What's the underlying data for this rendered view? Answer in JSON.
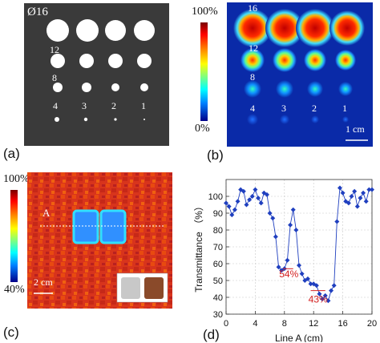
{
  "panels": {
    "a": {
      "label": "(a)",
      "diameter_labels": [
        "Ø16",
        "12",
        "8",
        "4",
        "3",
        "2",
        "1"
      ]
    },
    "b": {
      "label": "(b)",
      "colorbar_top": "100%",
      "colorbar_bottom": "0%",
      "diameter_labels": [
        "16",
        "12",
        "8",
        "4",
        "3",
        "2",
        "1"
      ],
      "scale_bar": "1 cm"
    },
    "c": {
      "label": "(c)",
      "colorbar_top": "100%",
      "colorbar_bottom": "40%",
      "line_label": "A",
      "scale_bar": "2 cm"
    },
    "d": {
      "label": "(d)"
    }
  },
  "chart_data": {
    "type": "scatter",
    "title": "",
    "xlabel": "Line A (cm)",
    "ylabel": "Transmittance （%）",
    "xlim": [
      0,
      20
    ],
    "ylim": [
      30,
      110
    ],
    "xticks": [
      0,
      4,
      8,
      12,
      16,
      20
    ],
    "yticks": [
      30,
      40,
      50,
      60,
      70,
      80,
      90,
      100
    ],
    "grid": true,
    "series_color": "#1f3fbf",
    "x": [
      0.0,
      0.4,
      0.8,
      1.2,
      1.6,
      2.0,
      2.4,
      2.8,
      3.2,
      3.6,
      4.0,
      4.4,
      4.8,
      5.2,
      5.6,
      6.0,
      6.4,
      6.8,
      7.2,
      7.6,
      8.0,
      8.4,
      8.8,
      9.2,
      9.6,
      10.0,
      10.4,
      10.8,
      11.2,
      11.6,
      12.0,
      12.4,
      12.8,
      13.2,
      13.6,
      14.0,
      14.4,
      14.8,
      15.2,
      15.6,
      16.0,
      16.4,
      16.8,
      17.2,
      17.6,
      18.0,
      18.4,
      18.8,
      19.2,
      19.6,
      20.0
    ],
    "y": [
      96,
      94,
      89,
      92,
      97,
      104,
      103,
      95,
      98,
      100,
      104,
      99,
      96,
      102,
      101,
      90,
      87,
      76,
      58,
      56,
      57,
      62,
      83,
      92,
      80,
      59,
      54,
      50,
      51,
      48,
      48,
      47,
      42,
      39,
      41,
      38,
      44,
      47,
      85,
      105,
      102,
      97,
      96,
      100,
      103,
      94,
      99,
      102,
      97,
      104,
      104
    ],
    "annotations": [
      {
        "text": "54%",
        "x": 8.6,
        "y": 52,
        "bracket_x": [
          7.8,
          9.2
        ],
        "bracket_y": 57
      },
      {
        "text": "43%",
        "x": 12.6,
        "y": 37,
        "bracket_x": [
          11.6,
          13.6
        ],
        "bracket_y": 44
      }
    ],
    "annotation_color": "#d42020"
  }
}
